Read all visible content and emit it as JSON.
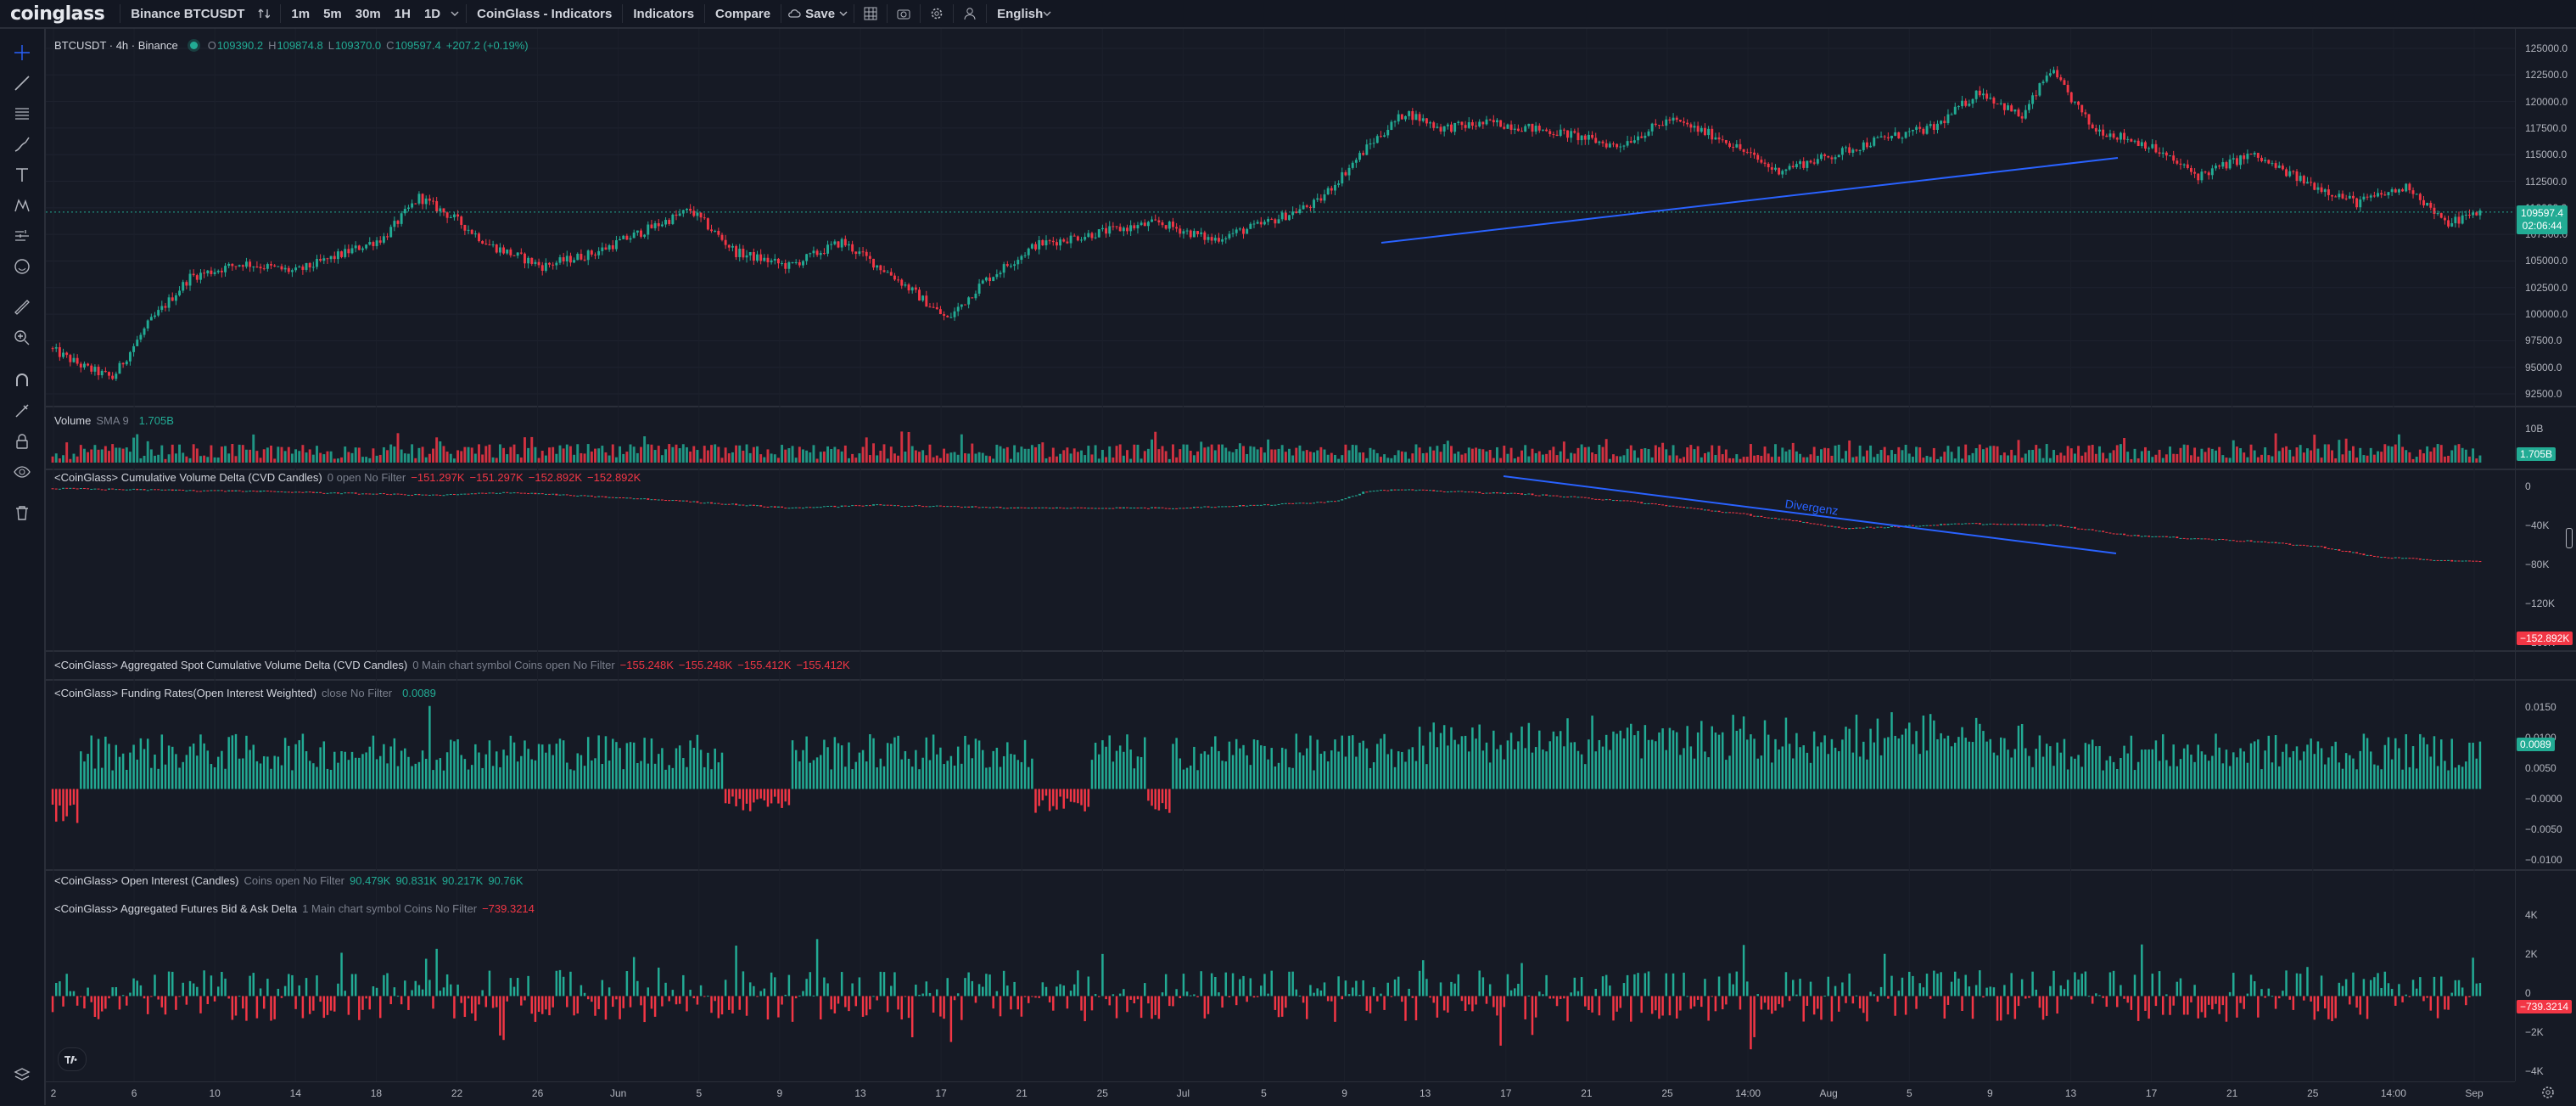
{
  "topbar": {
    "logo": "coinglass",
    "symbol": "Binance BTCUSDT",
    "intervals": [
      "1m",
      "5m",
      "30m",
      "1H",
      "1D"
    ],
    "indicators_script": "CoinGlass - Indicators",
    "indicators": "Indicators",
    "compare": "Compare",
    "save": "Save",
    "language": "English"
  },
  "main": {
    "title": "BTCUSDT · 4h · Binance",
    "o_label": "O",
    "o": "109390.2",
    "h_label": "H",
    "h": "109874.8",
    "l_label": "L",
    "l": "109370.0",
    "c_label": "C",
    "c": "109597.4",
    "change": "+207.2 (+0.19%)",
    "price_tag": "109597.4",
    "countdown": "02:06:44",
    "ticks": [
      "125000.0",
      "122500.0",
      "120000.0",
      "117500.0",
      "115000.0",
      "112500.0",
      "110000.0",
      "107500.0",
      "105000.0",
      "102500.0",
      "100000.0",
      "97500.0",
      "95000.0",
      "92500.0"
    ]
  },
  "volume": {
    "label": "Volume",
    "sma": "SMA 9",
    "value": "1.705B",
    "tick": "10B",
    "tag": "1.705B"
  },
  "cvd": {
    "label": "<CoinGlass> Cumulative Volume Delta (CVD Candles)",
    "params": "0 open No Filter",
    "values": [
      "−151.297K",
      "−151.297K",
      "−152.892K",
      "−152.892K"
    ],
    "annotation": "Divergenz",
    "ticks": [
      "0",
      "−40K",
      "−80K",
      "−120K",
      "−160K"
    ],
    "tag": "−152.892K"
  },
  "spot_cvd": {
    "label": "<CoinGlass> Aggregated Spot Cumulative Volume Delta (CVD Candles)",
    "params": "0 Main chart symbol Coins open No Filter",
    "values": [
      "−155.248K",
      "−155.248K",
      "−155.412K",
      "−155.412K"
    ]
  },
  "funding": {
    "label": "<CoinGlass> Funding Rates(Open Interest Weighted)",
    "params": "close No Filter",
    "value": "0.0089",
    "ticks": [
      "0.0150",
      "0.0100",
      "0.0050",
      "−0.0000",
      "−0.0050",
      "−0.0100"
    ],
    "tag": "0.0089"
  },
  "oi": {
    "label": "<CoinGlass> Open Interest (Candles)",
    "params": "Coins open No Filter",
    "values": [
      "90.479K",
      "90.831K",
      "90.217K",
      "90.76K"
    ]
  },
  "bidask": {
    "label": "<CoinGlass> Aggregated Futures Bid & Ask Delta",
    "params": "1 Main chart symbol Coins No Filter",
    "value": "−739.3214",
    "ticks": [
      "4K",
      "2K",
      "0",
      "−2K",
      "−4K"
    ],
    "tag": "−739.3214"
  },
  "xaxis": [
    "2",
    "6",
    "10",
    "14",
    "18",
    "22",
    "26",
    "Jun",
    "5",
    "9",
    "13",
    "17",
    "21",
    "25",
    "Jul",
    "5",
    "9",
    "13",
    "17",
    "21",
    "25",
    "14:00",
    "Aug",
    "5",
    "9",
    "13",
    "17",
    "21",
    "25",
    "14:00",
    "Sep"
  ],
  "colors": {
    "up": "#22ab94",
    "down": "#f23645",
    "line": "#2962ff",
    "bg": "#161a25"
  },
  "chart_data": {
    "type": "candlestick",
    "title": "BTCUSDT · 4h · Binance",
    "ylim": [
      91000,
      126000
    ],
    "x_ticks": [
      "2",
      "6",
      "10",
      "14",
      "18",
      "22",
      "26",
      "Jun",
      "5",
      "9",
      "13",
      "17",
      "21",
      "25",
      "Jul",
      "5",
      "9",
      "13",
      "17",
      "21",
      "25",
      "14:00",
      "Aug",
      "5",
      "9",
      "13",
      "17",
      "21",
      "25",
      "14:00",
      "Sep"
    ],
    "price_path": [
      [
        0,
        96800
      ],
      [
        10,
        95000
      ],
      [
        18,
        94000
      ],
      [
        28,
        99000
      ],
      [
        40,
        103500
      ],
      [
        55,
        104800
      ],
      [
        70,
        104000
      ],
      [
        82,
        105500
      ],
      [
        95,
        107200
      ],
      [
        105,
        111000
      ],
      [
        115,
        109000
      ],
      [
        125,
        106500
      ],
      [
        140,
        104500
      ],
      [
        155,
        105800
      ],
      [
        170,
        108000
      ],
      [
        182,
        109800
      ],
      [
        195,
        105800
      ],
      [
        210,
        104500
      ],
      [
        225,
        106800
      ],
      [
        240,
        103500
      ],
      [
        255,
        99500
      ],
      [
        265,
        103000
      ],
      [
        280,
        106500
      ],
      [
        300,
        107800
      ],
      [
        315,
        108600
      ],
      [
        330,
        107000
      ],
      [
        345,
        108500
      ],
      [
        360,
        110500
      ],
      [
        375,
        116000
      ],
      [
        385,
        119000
      ],
      [
        395,
        117500
      ],
      [
        410,
        118000
      ],
      [
        430,
        117000
      ],
      [
        445,
        115800
      ],
      [
        460,
        118300
      ],
      [
        475,
        116500
      ],
      [
        490,
        113500
      ],
      [
        505,
        114800
      ],
      [
        520,
        116500
      ],
      [
        535,
        117500
      ],
      [
        548,
        121000
      ],
      [
        560,
        118500
      ],
      [
        568,
        123000
      ],
      [
        580,
        117500
      ],
      [
        595,
        116000
      ],
      [
        610,
        113000
      ],
      [
        625,
        115000
      ],
      [
        640,
        112500
      ],
      [
        655,
        110500
      ],
      [
        670,
        112000
      ],
      [
        680,
        108500
      ],
      [
        690,
        109600
      ]
    ],
    "cvd_path": [
      [
        0,
        -2000
      ],
      [
        60,
        -5000
      ],
      [
        110,
        -9000
      ],
      [
        130,
        -6000
      ],
      [
        175,
        -14000
      ],
      [
        210,
        -22000
      ],
      [
        235,
        -19000
      ],
      [
        275,
        -22000
      ],
      [
        320,
        -22000
      ],
      [
        345,
        -19000
      ],
      [
        365,
        -15000
      ],
      [
        375,
        -4000
      ],
      [
        385,
        -3500
      ],
      [
        420,
        -8000
      ],
      [
        445,
        -14000
      ],
      [
        480,
        -28000
      ],
      [
        510,
        -43000
      ],
      [
        545,
        -38000
      ],
      [
        570,
        -40000
      ],
      [
        590,
        -50000
      ],
      [
        625,
        -56000
      ],
      [
        645,
        -62000
      ],
      [
        660,
        -72000
      ],
      [
        680,
        -76000
      ],
      [
        690,
        -77000
      ]
    ],
    "funding_range": [
      -0.0125,
      0.0165
    ],
    "bidask_range": [
      -4500,
      5000
    ]
  }
}
